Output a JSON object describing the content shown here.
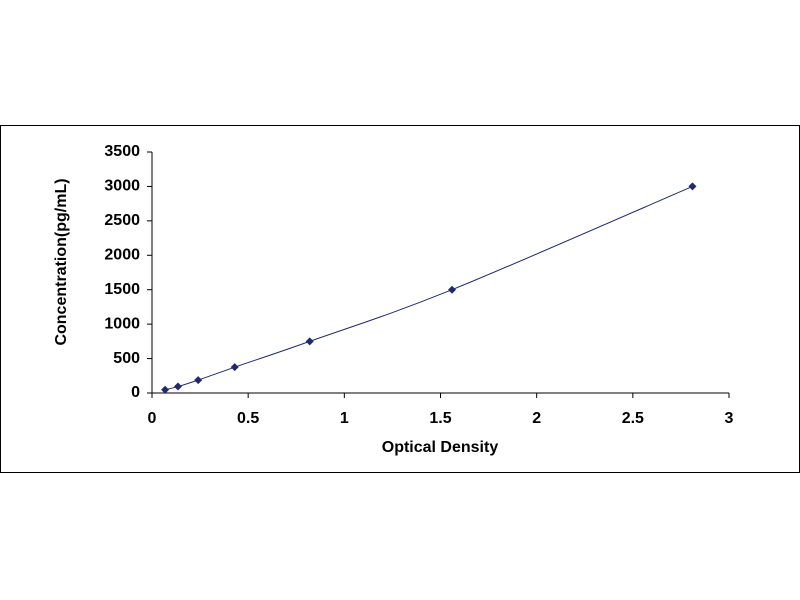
{
  "chart_data": {
    "type": "scatter-line",
    "x_label": "Optical Density",
    "y_label": "Concentration(pg/mL)",
    "x": [
      0.068,
      0.135,
      0.24,
      0.43,
      0.82,
      1.56,
      2.81
    ],
    "values": [
      46.88,
      93.75,
      187.5,
      375,
      750,
      1500,
      3000
    ],
    "color": "#1f2a6e",
    "xlim": [
      0,
      3
    ],
    "xticks": [
      0,
      0.5,
      1,
      1.5,
      2,
      2.5,
      3
    ],
    "ylim": [
      0,
      3500
    ],
    "yticks": [
      0,
      500,
      1000,
      1500,
      2000,
      2500,
      3000,
      3500
    ],
    "grid": false
  }
}
